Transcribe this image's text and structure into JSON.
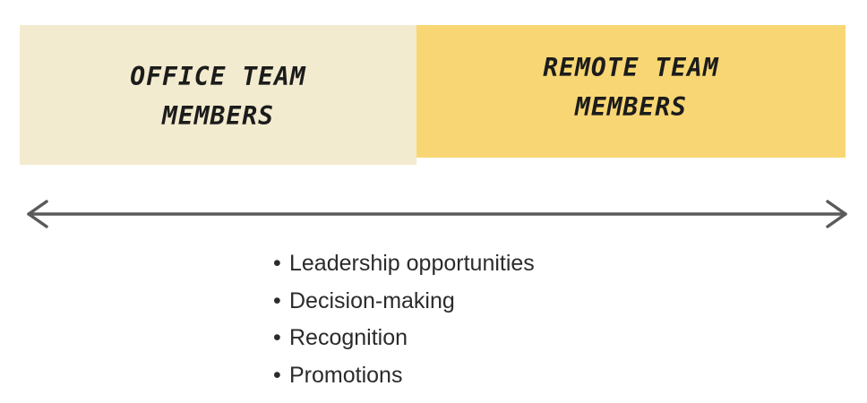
{
  "panels": {
    "office": {
      "label": "OFFICE TEAM MEMBERS",
      "color": "#f3ebcf"
    },
    "remote": {
      "label": "REMOTE TEAM MEMBERS",
      "color": "#f8d673"
    }
  },
  "arrow": {
    "direction": "bidirectional",
    "color": "#5a5a5a"
  },
  "bullets": {
    "marker": "•",
    "items": [
      "Leadership opportunities",
      "Decision-making",
      "Recognition",
      "Promotions"
    ]
  }
}
